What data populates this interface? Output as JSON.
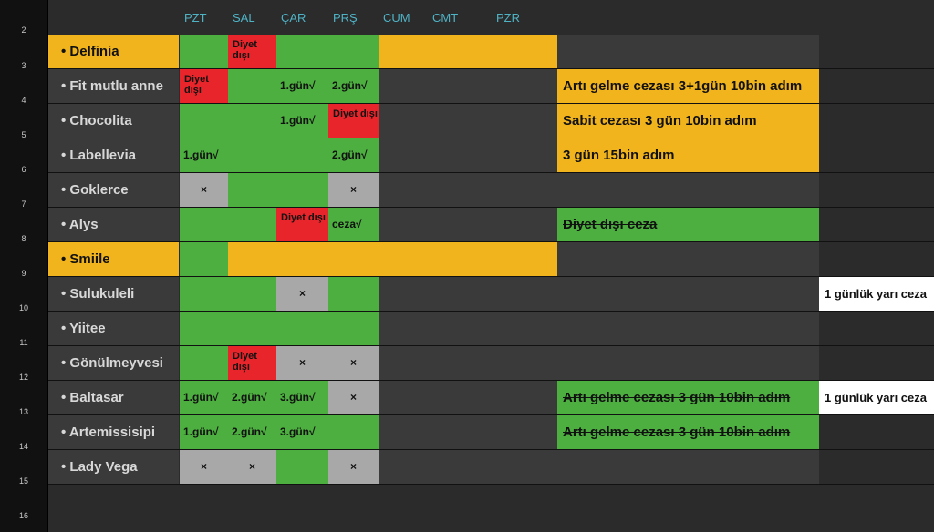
{
  "colors": {
    "green": "#4caf3f",
    "red": "#e8252b",
    "gray": "#a8a8a8",
    "amber": "#f2b41d",
    "dark": "#3a3a3a",
    "white": "#ffffff"
  },
  "row_numbers": [
    "2",
    "3",
    "4",
    "5",
    "6",
    "7",
    "8",
    "9",
    "10",
    "11",
    "12",
    "13",
    "14",
    "15",
    "16"
  ],
  "days": [
    "PZT",
    "SAL",
    "ÇAR",
    "PRŞ",
    "CUM",
    "CMT",
    "PZR"
  ],
  "rows": [
    {
      "name": "• Delfinia",
      "highlight": true,
      "cells": [
        "green",
        "red",
        "green",
        "green",
        "amber",
        "amber",
        "amber"
      ],
      "texts": [
        "",
        "Diyet dışı",
        "",
        "",
        "",
        "",
        ""
      ],
      "note": null,
      "note_color": "dark",
      "note_strike": false,
      "extra": null
    },
    {
      "name": "• Fit mutlu anne",
      "highlight": false,
      "cells": [
        "red",
        "green",
        "green",
        "green",
        "dark",
        "dark",
        "dark"
      ],
      "texts": [
        "Diyet dışı",
        "",
        "1.gün√",
        "2.gün√",
        "",
        "",
        ""
      ],
      "note": "Artı gelme cezası 3+1gün 10bin adım",
      "note_color": "amber",
      "note_strike": false,
      "extra": null
    },
    {
      "name": "• Chocolita",
      "highlight": false,
      "cells": [
        "green",
        "green",
        "green",
        "red",
        "dark",
        "dark",
        "dark"
      ],
      "texts": [
        "",
        "",
        "1.gün√",
        "Diyet dışı",
        "",
        "",
        ""
      ],
      "note": "Sabit cezası 3 gün 10bin adım",
      "note_color": "amber",
      "note_strike": false,
      "extra": null
    },
    {
      "name": "• Labellevia",
      "highlight": false,
      "cells": [
        "green",
        "green",
        "green",
        "green",
        "dark",
        "dark",
        "dark"
      ],
      "texts": [
        "1.gün√",
        "",
        "",
        "2.gün√",
        "",
        "",
        ""
      ],
      "note": "3 gün 15bin adım",
      "note_color": "amber",
      "note_strike": false,
      "extra": null
    },
    {
      "name": "• Goklerce",
      "highlight": false,
      "cells": [
        "gray",
        "green",
        "green",
        "gray",
        "dark",
        "dark",
        "dark"
      ],
      "texts": [
        "×",
        "",
        "",
        "×",
        "",
        "",
        ""
      ],
      "note": null,
      "note_color": "dark",
      "note_strike": false,
      "extra": null
    },
    {
      "name": "• Alys",
      "highlight": false,
      "cells": [
        "green",
        "green",
        "red",
        "green",
        "dark",
        "dark",
        "dark"
      ],
      "texts": [
        "",
        "",
        "Diyet dışı",
        "ceza√",
        "",
        "",
        ""
      ],
      "note": "Diyet dışı ceza",
      "note_color": "green",
      "note_strike": true,
      "extra": null
    },
    {
      "name": "• Smiile",
      "highlight": true,
      "cells": [
        "green",
        "amber",
        "amber",
        "amber",
        "amber",
        "amber",
        "amber"
      ],
      "texts": [
        "",
        "",
        "",
        "",
        "",
        "",
        ""
      ],
      "note": null,
      "note_color": "dark",
      "note_strike": false,
      "extra": null
    },
    {
      "name": "• Sulukuleli",
      "highlight": false,
      "cells": [
        "green",
        "green",
        "gray",
        "green",
        "dark",
        "dark",
        "dark"
      ],
      "texts": [
        "",
        "",
        "×",
        "",
        "",
        "",
        ""
      ],
      "note": null,
      "note_color": "dark",
      "note_strike": false,
      "extra": "1 günlük yarı ceza"
    },
    {
      "name": "• Yiitee",
      "highlight": false,
      "cells": [
        "green",
        "green",
        "green",
        "green",
        "dark",
        "dark",
        "dark"
      ],
      "texts": [
        "",
        "",
        "",
        "",
        "",
        "",
        ""
      ],
      "note": null,
      "note_color": "dark",
      "note_strike": false,
      "extra": null
    },
    {
      "name": "• Gönülmeyvesi",
      "highlight": false,
      "cells": [
        "green",
        "red",
        "gray",
        "gray",
        "dark",
        "dark",
        "dark"
      ],
      "texts": [
        "",
        "Diyet dışı",
        "×",
        "×",
        "",
        "",
        ""
      ],
      "note": null,
      "note_color": "dark",
      "note_strike": false,
      "extra": null
    },
    {
      "name": "• Baltasar",
      "highlight": false,
      "cells": [
        "green",
        "green",
        "green",
        "gray",
        "dark",
        "dark",
        "dark"
      ],
      "texts": [
        "1.gün√",
        "2.gün√",
        "3.gün√",
        "×",
        "",
        "",
        ""
      ],
      "note": "Artı gelme cezası 3 gün 10bin adım",
      "note_color": "green",
      "note_strike": true,
      "extra": "1 günlük yarı ceza"
    },
    {
      "name": "• Artemissisipi",
      "highlight": false,
      "cells": [
        "green",
        "green",
        "green",
        "green",
        "dark",
        "dark",
        "dark"
      ],
      "texts": [
        "1.gün√",
        "2.gün√",
        "3.gün√",
        "",
        "",
        "",
        ""
      ],
      "note": "Artı gelme cezası 3 gün 10bin adım",
      "note_color": "green",
      "note_strike": true,
      "extra": null
    },
    {
      "name": "• Lady Vega",
      "highlight": false,
      "cells": [
        "gray",
        "gray",
        "green",
        "gray",
        "dark",
        "dark",
        "dark"
      ],
      "texts": [
        "×",
        "×",
        "",
        "×",
        "",
        "",
        ""
      ],
      "note": null,
      "note_color": "dark",
      "note_strike": false,
      "extra": null
    }
  ]
}
